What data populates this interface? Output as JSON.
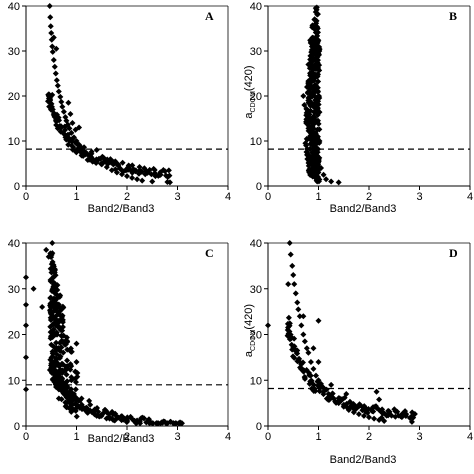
{
  "chart_data": [
    {
      "panel": "A",
      "type": "scatter",
      "xlabel": "Band2/Band3",
      "ylabel_main": "",
      "ylabel_sub": "",
      "xlim": [
        0,
        4
      ],
      "ylim": [
        0,
        40
      ],
      "xticks": [
        "0",
        "1",
        "2",
        "3",
        "4"
      ],
      "yticks": [
        "0",
        "10",
        "20",
        "30",
        "40"
      ],
      "threshold_y": 8.2,
      "curve": {
        "a": 9.5,
        "b": 0.18,
        "x_min": 0.45,
        "x_max": 2.85
      },
      "points": [
        [
          0.47,
          40
        ],
        [
          0.48,
          37.5
        ],
        [
          0.49,
          35.5
        ],
        [
          0.5,
          34
        ],
        [
          0.51,
          32.5
        ],
        [
          0.52,
          31
        ],
        [
          0.53,
          29.8
        ],
        [
          0.55,
          28
        ],
        [
          0.57,
          26.5
        ],
        [
          0.59,
          25
        ],
        [
          0.61,
          23.5
        ],
        [
          0.63,
          22.3
        ],
        [
          0.65,
          21
        ],
        [
          0.68,
          19.8
        ],
        [
          0.7,
          18.7
        ],
        [
          0.72,
          17.6
        ],
        [
          0.75,
          16.5
        ],
        [
          0.78,
          15.3
        ],
        [
          0.8,
          14.5
        ],
        [
          0.83,
          13.6
        ],
        [
          0.86,
          12.8
        ],
        [
          0.9,
          11.8
        ],
        [
          0.95,
          10.8
        ],
        [
          1.0,
          10
        ],
        [
          1.05,
          9.2
        ],
        [
          1.1,
          8.5
        ],
        [
          1.15,
          7.8
        ],
        [
          1.2,
          7.3
        ],
        [
          1.25,
          6.8
        ],
        [
          1.3,
          6.2
        ],
        [
          1.4,
          5.4
        ],
        [
          1.5,
          4.8
        ],
        [
          1.6,
          4.2
        ],
        [
          1.7,
          3.5
        ],
        [
          1.8,
          3
        ],
        [
          1.9,
          2.6
        ],
        [
          2.0,
          2.2
        ],
        [
          2.1,
          1.8
        ],
        [
          2.2,
          1.5
        ],
        [
          2.3,
          1.2
        ],
        [
          2.5,
          1
        ],
        [
          2.8,
          0.9
        ],
        [
          2.85,
          0.8
        ],
        [
          0.98,
          12.5
        ],
        [
          1.05,
          13
        ],
        [
          1.15,
          8.6
        ],
        [
          1.3,
          7.6
        ],
        [
          1.4,
          8
        ],
        [
          0.88,
          16
        ],
        [
          0.84,
          18.5
        ],
        [
          0.6,
          30.5
        ],
        [
          0.55,
          33
        ],
        [
          0.92,
          14
        ],
        [
          1.22,
          5.8
        ]
      ]
    },
    {
      "panel": "B",
      "type": "scatter",
      "xlabel": "Band2/Band3",
      "ylabel_main": "a",
      "ylabel_sub": "CDOM",
      "ylabel_tail": "(420)",
      "xlim": [
        0,
        4
      ],
      "ylim": [
        0,
        40
      ],
      "xticks": [
        "0",
        "1",
        "2",
        "3",
        "4"
      ],
      "yticks": [
        "0",
        "10",
        "20",
        "30",
        "40"
      ],
      "threshold_y": 8.2,
      "columns": [
        {
          "x": 0.78,
          "y_min": 6,
          "y_max": 24
        },
        {
          "x": 0.82,
          "y_min": 3,
          "y_max": 29
        },
        {
          "x": 0.86,
          "y_min": 2,
          "y_max": 34
        },
        {
          "x": 0.9,
          "y_min": 1.5,
          "y_max": 36
        },
        {
          "x": 0.94,
          "y_min": 1,
          "y_max": 38
        },
        {
          "x": 0.97,
          "y_min": 0.8,
          "y_max": 40
        },
        {
          "x": 1.0,
          "y_min": 0.8,
          "y_max": 33
        }
      ],
      "points": [
        [
          1.05,
          4
        ],
        [
          1.1,
          2.5
        ],
        [
          1.15,
          1.5
        ],
        [
          1.25,
          1.0
        ],
        [
          1.4,
          0.8
        ],
        [
          0.74,
          9.5
        ],
        [
          0.72,
          18
        ],
        [
          0.7,
          20
        ],
        [
          0.8,
          27
        ],
        [
          0.85,
          32
        ],
        [
          0.95,
          26
        ],
        [
          1.02,
          10
        ]
      ]
    },
    {
      "panel": "C",
      "type": "scatter",
      "xlabel": "Band2/Band3",
      "ylabel_main": "",
      "ylabel_sub": "",
      "xlim": [
        0,
        4
      ],
      "ylim": [
        0,
        40
      ],
      "xticks": [
        "0",
        "1",
        "2",
        "3",
        "4"
      ],
      "yticks": [
        "0",
        "10",
        "20",
        "30",
        "40"
      ],
      "threshold_y": 9,
      "curve": {
        "a": 7.5,
        "b": 0.55,
        "x_min": 0.5,
        "x_max": 3.1
      },
      "columns": [
        {
          "x": 0.5,
          "y_min": 10,
          "y_max": 38
        },
        {
          "x": 0.55,
          "y_min": 9,
          "y_max": 36
        },
        {
          "x": 0.6,
          "y_min": 8,
          "y_max": 33
        },
        {
          "x": 0.66,
          "y_min": 6,
          "y_max": 30
        },
        {
          "x": 0.72,
          "y_min": 5,
          "y_max": 27
        },
        {
          "x": 0.8,
          "y_min": 4,
          "y_max": 22
        },
        {
          "x": 0.9,
          "y_min": 3,
          "y_max": 17
        },
        {
          "x": 1.0,
          "y_min": 2,
          "y_max": 12
        }
      ],
      "points": [
        [
          0.0,
          32.5
        ],
        [
          0.0,
          26.5
        ],
        [
          0.0,
          22
        ],
        [
          0.0,
          15
        ],
        [
          0.0,
          8
        ],
        [
          0.15,
          30
        ],
        [
          0.32,
          26
        ],
        [
          0.4,
          38.5
        ],
        [
          0.45,
          37
        ],
        [
          0.52,
          40
        ],
        [
          0.57,
          34
        ],
        [
          0.65,
          23
        ],
        [
          0.9,
          10
        ],
        [
          1.0,
          18
        ],
        [
          1.0,
          14
        ],
        [
          1.1,
          6
        ],
        [
          1.2,
          4
        ],
        [
          1.35,
          3.2
        ],
        [
          1.5,
          2.5
        ],
        [
          1.65,
          2
        ],
        [
          1.8,
          1.7
        ],
        [
          2.0,
          1.5
        ],
        [
          2.2,
          1.2
        ],
        [
          2.45,
          1.0
        ],
        [
          2.75,
          0.9
        ],
        [
          3.05,
          0.8
        ],
        [
          1.25,
          5.5
        ],
        [
          1.4,
          2.2
        ],
        [
          1.55,
          3
        ],
        [
          0.82,
          8.5
        ],
        [
          0.95,
          7
        ]
      ]
    },
    {
      "panel": "D",
      "type": "scatter",
      "xlabel": "Band2/Band3",
      "ylabel_main": "a",
      "ylabel_sub": "CDOM",
      "ylabel_tail": "(420)",
      "xlim": [
        0,
        4
      ],
      "ylim": [
        0,
        40
      ],
      "xticks": [
        "0",
        "1",
        "2",
        "3",
        "4"
      ],
      "yticks": [
        "0",
        "10",
        "20",
        "30",
        "40"
      ],
      "threshold_y": 8.2,
      "curve": {
        "a": 9.0,
        "b": 0.2,
        "x_min": 0.4,
        "x_max": 2.9
      },
      "points": [
        [
          0.43,
          40
        ],
        [
          0.45,
          37.5
        ],
        [
          0.48,
          35
        ],
        [
          0.5,
          33
        ],
        [
          0.52,
          31
        ],
        [
          0.55,
          29
        ],
        [
          0.58,
          27
        ],
        [
          0.6,
          25.5
        ],
        [
          0.63,
          24
        ],
        [
          0.66,
          22
        ],
        [
          0.7,
          20
        ],
        [
          0.73,
          18.5
        ],
        [
          0.77,
          17
        ],
        [
          0.8,
          16
        ],
        [
          0.85,
          14
        ],
        [
          0.9,
          12.5
        ],
        [
          0.95,
          11
        ],
        [
          1.0,
          10
        ],
        [
          1.05,
          9.2
        ],
        [
          1.1,
          8.3
        ],
        [
          1.2,
          7
        ],
        [
          1.3,
          6
        ],
        [
          1.4,
          5
        ],
        [
          1.5,
          4.2
        ],
        [
          1.6,
          3.5
        ],
        [
          1.7,
          3
        ],
        [
          1.8,
          2.6
        ],
        [
          1.9,
          2.2
        ],
        [
          2.0,
          1.9
        ],
        [
          2.1,
          1.6
        ],
        [
          2.2,
          1.3
        ],
        [
          2.3,
          1.1
        ],
        [
          2.85,
          0.9
        ],
        [
          0.0,
          22
        ],
        [
          0.4,
          31
        ],
        [
          0.7,
          24
        ],
        [
          1.0,
          23
        ],
        [
          1.0,
          14
        ],
        [
          1.25,
          9
        ],
        [
          1.55,
          7
        ],
        [
          2.15,
          7.5
        ],
        [
          2.2,
          5.8
        ],
        [
          2.25,
          1.8
        ],
        [
          0.9,
          17
        ]
      ]
    }
  ]
}
